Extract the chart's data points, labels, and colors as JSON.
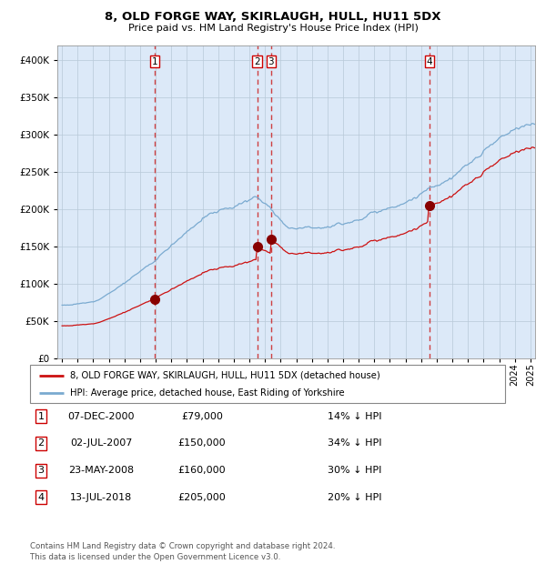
{
  "title1": "8, OLD FORGE WAY, SKIRLAUGH, HULL, HU11 5DX",
  "title2": "Price paid vs. HM Land Registry's House Price Index (HPI)",
  "plot_bg_color": "#dce9f8",
  "sale_dates_year": [
    2000.92,
    2007.5,
    2008.39,
    2018.53
  ],
  "sale_prices": [
    79000,
    150000,
    160000,
    205000
  ],
  "sale_labels": [
    "1",
    "2",
    "3",
    "4"
  ],
  "legend_line1": "8, OLD FORGE WAY, SKIRLAUGH, HULL, HU11 5DX (detached house)",
  "legend_line2": "HPI: Average price, detached house, East Riding of Yorkshire",
  "table": [
    [
      "1",
      "07-DEC-2000",
      "£79,000",
      "14% ↓ HPI"
    ],
    [
      "2",
      "02-JUL-2007",
      "£150,000",
      "34% ↓ HPI"
    ],
    [
      "3",
      "23-MAY-2008",
      "£160,000",
      "30% ↓ HPI"
    ],
    [
      "4",
      "13-JUL-2018",
      "£205,000",
      "20% ↓ HPI"
    ]
  ],
  "footer": "Contains HM Land Registry data © Crown copyright and database right 2024.\nThis data is licensed under the Open Government Licence v3.0.",
  "hpi_color": "#7aaad0",
  "sale_color": "#cc1111",
  "marker_color": "#880000",
  "vline_color": "#cc2222",
  "ylim": [
    0,
    420000
  ],
  "xlim_start": 1994.7,
  "xlim_end": 2025.3
}
